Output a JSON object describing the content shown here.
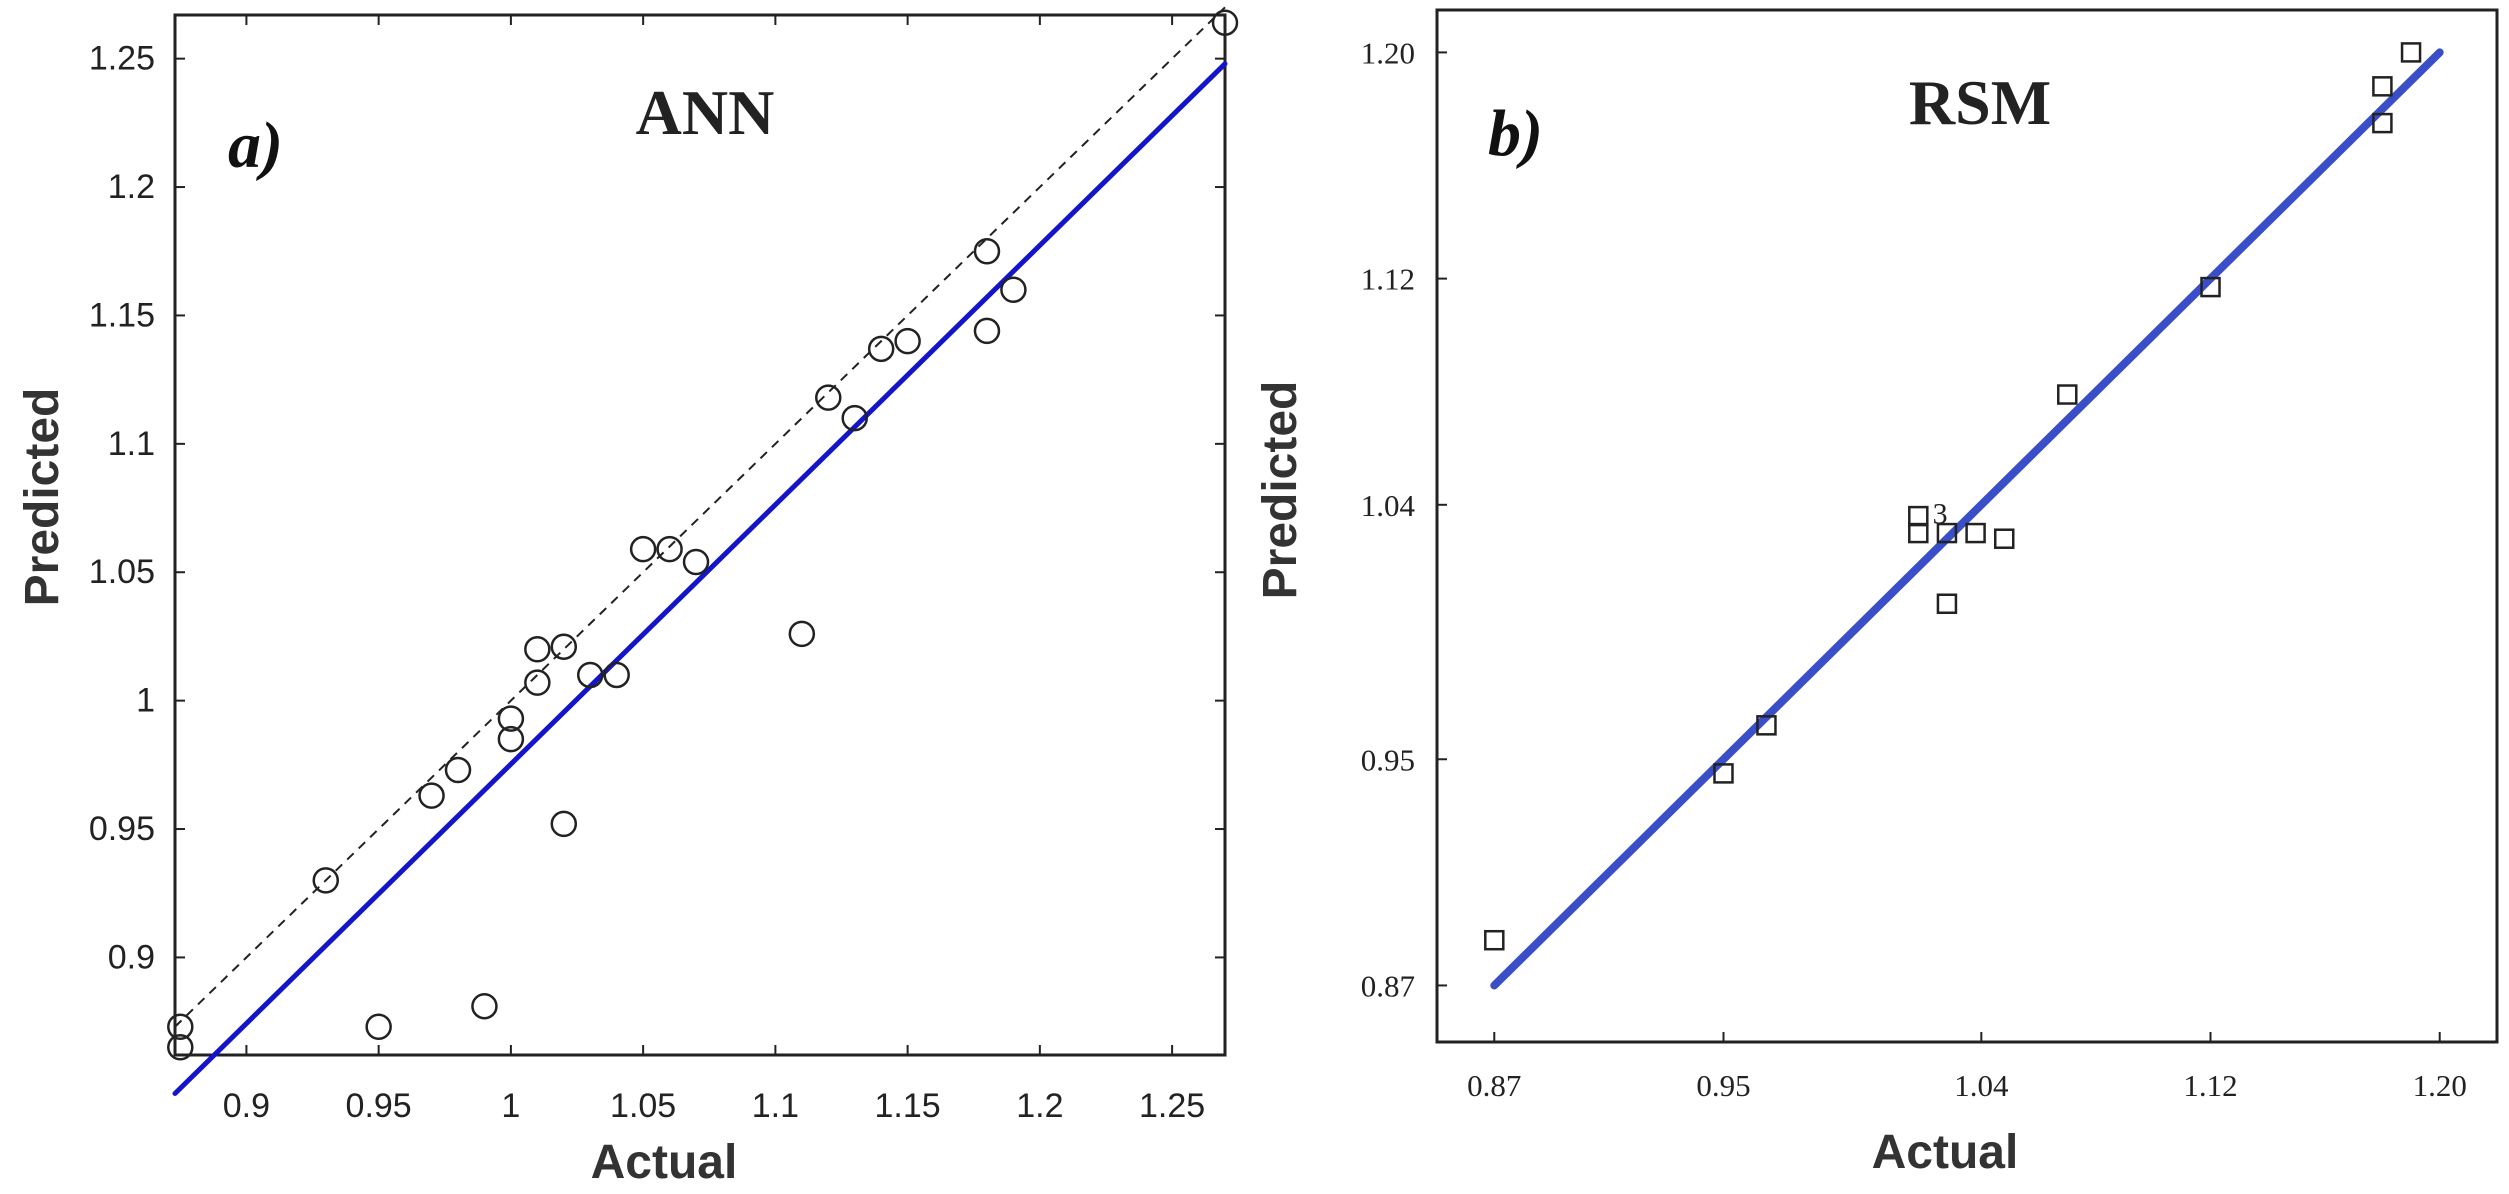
{
  "chart_data": [
    {
      "id": "ann",
      "type": "scatter",
      "panel_tag": "a)",
      "title": "ANN",
      "xlabel": "Actual",
      "ylabel": "Predicted",
      "xlim": [
        0.873,
        1.27
      ],
      "ylim": [
        0.862,
        1.267
      ],
      "xticks": [
        0.9,
        0.95,
        1,
        1.05,
        1.1,
        1.15,
        1.2,
        1.25
      ],
      "xtick_labels": [
        "0.9",
        "0.95",
        "1",
        "1.05",
        "1.1",
        "1.15",
        "1.2",
        "1.25"
      ],
      "yticks": [
        0.9,
        0.95,
        1,
        1.05,
        1.1,
        1.15,
        1.2,
        1.25
      ],
      "ytick_labels": [
        "0.9",
        "0.95",
        "1",
        "1.05",
        "1.1",
        "1.15",
        "1.2",
        "1.25"
      ],
      "marker": "circle",
      "colors": {
        "fit_line": "#1414c8",
        "reference_line": "#222222",
        "marker": "#222222"
      },
      "fit_line": {
        "x": [
          0.873,
          1.27
        ],
        "y": [
          0.847,
          1.248
        ]
      },
      "reference_line": {
        "x": [
          0.873,
          1.27
        ],
        "y": [
          0.873,
          1.27
        ]
      },
      "points": {
        "x": [
          0.875,
          0.875,
          0.93,
          0.95,
          0.97,
          0.98,
          0.99,
          1.0,
          1.0,
          1.01,
          1.01,
          1.02,
          1.02,
          1.03,
          1.04,
          1.05,
          1.06,
          1.07,
          1.11,
          1.12,
          1.13,
          1.14,
          1.15,
          1.18,
          1.18,
          1.19,
          1.27
        ],
        "y": [
          0.865,
          0.873,
          0.93,
          0.873,
          0.963,
          0.973,
          0.881,
          0.985,
          0.993,
          1.007,
          1.02,
          1.021,
          0.952,
          1.01,
          1.01,
          1.059,
          1.059,
          1.054,
          1.026,
          1.118,
          1.11,
          1.137,
          1.14,
          1.175,
          1.144,
          1.16,
          1.264
        ]
      }
    },
    {
      "id": "rsm",
      "type": "scatter",
      "panel_tag": "b)",
      "title": "RSM",
      "xlabel": "Actual",
      "ylabel": "Predicted",
      "xlim": [
        0.85,
        1.22
      ],
      "ylim": [
        0.85,
        1.215
      ],
      "xticks": [
        0.87,
        0.95,
        1.04,
        1.12,
        1.2
      ],
      "xtick_labels": [
        "0.87",
        "0.95",
        "1.04",
        "1.12",
        "1.20"
      ],
      "yticks": [
        0.87,
        0.95,
        1.04,
        1.12,
        1.2
      ],
      "ytick_labels": [
        "0.87",
        "0.95",
        "1.04",
        "1.12",
        "1.20"
      ],
      "marker": "square",
      "colors": {
        "fit_line": "#3a4fc7",
        "marker": "#222222"
      },
      "fit_line": {
        "x": [
          0.87,
          1.2
        ],
        "y": [
          0.87,
          1.2
        ]
      },
      "annotation": {
        "text": "3",
        "x": 1.023,
        "y": 1.037
      },
      "points": {
        "x": [
          0.87,
          0.95,
          0.965,
          1.018,
          1.018,
          1.028,
          1.028,
          1.038,
          1.048,
          1.07,
          1.12,
          1.18,
          1.18,
          1.19
        ],
        "y": [
          0.886,
          0.945,
          0.962,
          1.036,
          1.03,
          1.03,
          1.005,
          1.03,
          1.028,
          1.079,
          1.117,
          1.175,
          1.188,
          1.2
        ]
      }
    }
  ]
}
